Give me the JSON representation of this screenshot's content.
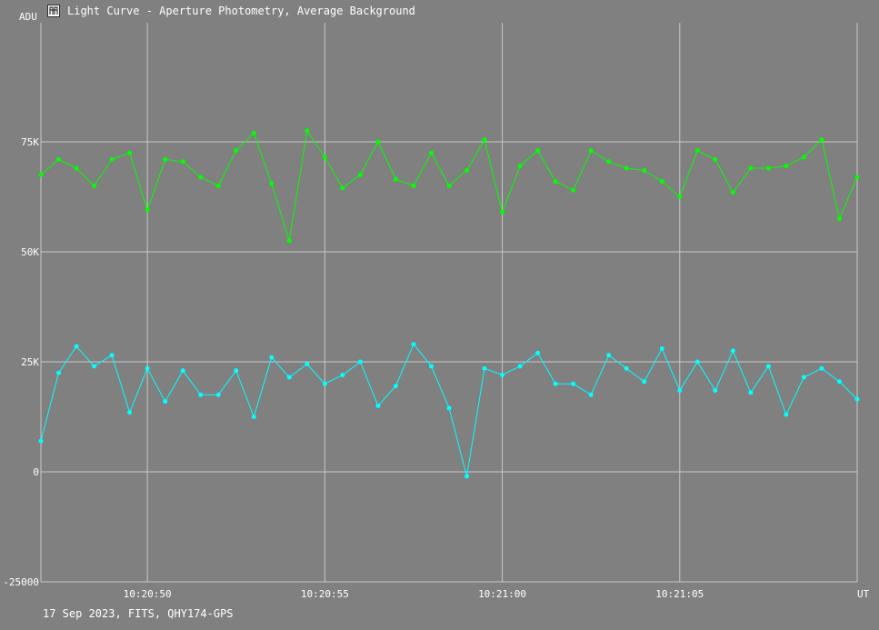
{
  "window": {
    "title": "Light Curve - Aperture Photometry, Average Background",
    "footer": "17 Sep 2023, FITS, QHY174-GPS"
  },
  "colors": {
    "background": "#808080",
    "grid": "#c8c8c8",
    "series_target": "#00ff00",
    "series_background": "#00ffff"
  },
  "chart_data": {
    "type": "line",
    "title": "Light Curve - Aperture Photometry, Average Background",
    "ylabel": "ADU",
    "xlabel": "UT",
    "ylim": [
      -25000,
      100000
    ],
    "xlim": [
      0,
      46
    ],
    "grid": true,
    "y_ticks": [
      {
        "value": 75000,
        "label": "75K"
      },
      {
        "value": 50000,
        "label": "50K"
      },
      {
        "value": 25000,
        "label": "25K"
      },
      {
        "value": 0,
        "label": "0"
      },
      {
        "value": -25000,
        "label": "-25000"
      }
    ],
    "x_ticks": [
      {
        "value": 6,
        "label": "10:20:50"
      },
      {
        "value": 16,
        "label": "10:20:55"
      },
      {
        "value": 26,
        "label": "10:21:00"
      },
      {
        "value": 36,
        "label": "10:21:05"
      }
    ],
    "series": [
      {
        "color": "#00ff00",
        "values": [
          67500,
          71000,
          69000,
          65000,
          71000,
          72500,
          59500,
          71000,
          70500,
          67000,
          65000,
          73000,
          77000,
          65500,
          52500,
          77500,
          71500,
          64500,
          67500,
          75000,
          66500,
          65000,
          72500,
          65000,
          68500,
          75500,
          59000,
          69500,
          73000,
          66000,
          64000,
          73000,
          70500,
          69000,
          68500,
          66000,
          62500,
          73000,
          71000,
          63500,
          69000,
          69000,
          69500,
          71500,
          75500,
          57500,
          67000
        ]
      },
      {
        "color": "#00ffff",
        "values": [
          7000,
          22500,
          28500,
          24000,
          26500,
          13500,
          23500,
          16000,
          23000,
          17500,
          17500,
          23000,
          12500,
          26000,
          21500,
          24500,
          20000,
          22000,
          25000,
          15000,
          19500,
          29000,
          24000,
          14500,
          -1000,
          23500,
          22000,
          24000,
          27000,
          20000,
          20000,
          17500,
          26500,
          23500,
          20500,
          28000,
          18500,
          25000,
          18500,
          27500,
          18000,
          24000,
          13000,
          21500,
          23500,
          20500,
          16500
        ]
      }
    ]
  }
}
